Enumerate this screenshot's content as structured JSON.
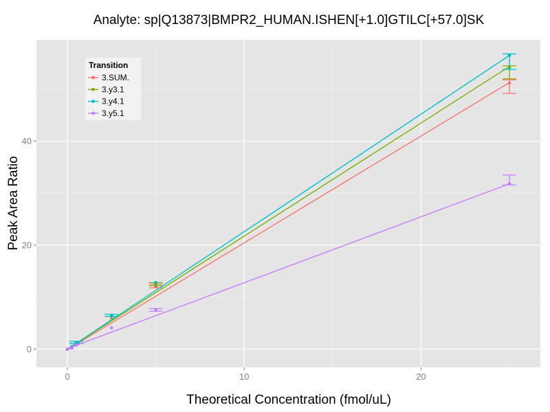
{
  "chart_data": {
    "type": "line",
    "title": "Analyte: sp|Q13873|BMPR2_HUMAN.ISHEN[+1.0]GTILC[+57.0]SK",
    "xlabel": "Theoretical Concentration (fmol/uL)",
    "ylabel": "Peak Area Ratio",
    "xlim": [
      -1.75,
      26.75
    ],
    "ylim": [
      -3.5,
      59.5
    ],
    "x_ticks": [
      0,
      10,
      20
    ],
    "y_ticks": [
      0,
      20,
      40
    ],
    "grid": true,
    "legend": {
      "title": "Transition",
      "position": "top-left"
    },
    "series": [
      {
        "name": "3.SUM.",
        "color": "#F8766D",
        "points": [
          {
            "x": 0,
            "y": 0.0
          },
          {
            "x": 0.25,
            "y": 0.3
          },
          {
            "x": 0.5,
            "y": 1.0
          },
          {
            "x": 2.5,
            "y": 6.0
          },
          {
            "x": 5,
            "y": 12.0
          },
          {
            "x": 25,
            "y": 51.2
          }
        ],
        "errors": [
          {
            "x": 25,
            "lo": 49.2,
            "hi": 51.8
          },
          {
            "x": 5,
            "lo": 11.8,
            "hi": 12.5
          }
        ],
        "fit": {
          "slope": 2.055,
          "intercept": -0.1
        }
      },
      {
        "name": "3.y3.1",
        "color": "#7CAE00",
        "points": [
          {
            "x": 0,
            "y": 0.0
          },
          {
            "x": 0.25,
            "y": 0.3
          },
          {
            "x": 0.5,
            "y": 1.1
          },
          {
            "x": 2.5,
            "y": 6.3
          },
          {
            "x": 5,
            "y": 12.5
          },
          {
            "x": 25,
            "y": 54.2
          }
        ],
        "errors": [
          {
            "x": 25,
            "lo": 52.0,
            "hi": 54.5
          },
          {
            "x": 5,
            "lo": 12.2,
            "hi": 12.8
          }
        ],
        "fit": {
          "slope": 2.175,
          "intercept": 0.0
        }
      },
      {
        "name": "3.y4.1",
        "color": "#00BFC4",
        "points": [
          {
            "x": 0,
            "y": 0.0
          },
          {
            "x": 0.25,
            "y": 0.5
          },
          {
            "x": 0.5,
            "y": 1.3
          },
          {
            "x": 2.5,
            "y": 6.5
          },
          {
            "x": 5,
            "y": 12.8
          },
          {
            "x": 25,
            "y": 56.5
          }
        ],
        "errors": [
          {
            "x": 25,
            "lo": 53.8,
            "hi": 56.8
          },
          {
            "x": 2.5,
            "lo": 6.3,
            "hi": 6.7
          },
          {
            "x": 0.5,
            "lo": 1.1,
            "hi": 1.5
          }
        ],
        "fit": {
          "slope": 2.26,
          "intercept": 0.0
        }
      },
      {
        "name": "3.y5.1",
        "color": "#C77CFF",
        "points": [
          {
            "x": 0,
            "y": 0.0
          },
          {
            "x": 0.25,
            "y": 0.2
          },
          {
            "x": 0.5,
            "y": 0.8
          },
          {
            "x": 2.5,
            "y": 4.1
          },
          {
            "x": 5,
            "y": 7.5
          },
          {
            "x": 25,
            "y": 31.8
          }
        ],
        "errors": [
          {
            "x": 25,
            "lo": 31.6,
            "hi": 33.5
          },
          {
            "x": 5,
            "lo": 7.3,
            "hi": 7.8
          }
        ],
        "fit": {
          "slope": 1.268,
          "intercept": 0.1
        }
      }
    ]
  }
}
